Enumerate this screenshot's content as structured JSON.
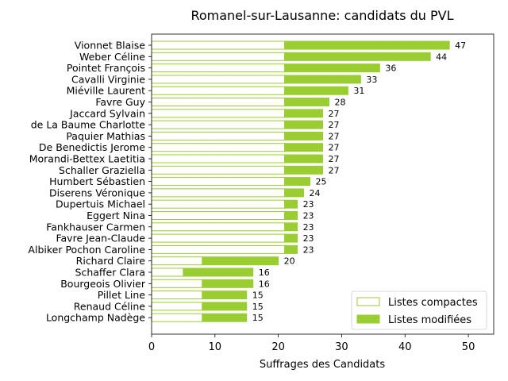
{
  "chart_data": {
    "type": "bar",
    "orientation": "horizontal",
    "stacked": true,
    "title": "Romanel-sur-Lausanne: candidats du PVL",
    "xlabel": "Suffrages des Candidats",
    "ylabel": "",
    "xlim": [
      0,
      54
    ],
    "xticks": [
      0,
      10,
      20,
      30,
      40,
      50
    ],
    "grid": false,
    "legend_position": "bottom-right",
    "colors": {
      "accent": "#9acd32",
      "edge": "#9acd32",
      "background": "#ffffff"
    },
    "categories": [
      "Vionnet Blaise",
      "Weber Céline",
      "Pointet François",
      "Cavalli Virginie",
      "Miéville Laurent",
      "Favre Guy",
      "Jaccard Sylvain",
      "de La Baume Charlotte",
      "Paquier Mathias",
      "De Benedictis Jerome",
      "Morandi-Bettex Laetitia",
      "Schaller Graziella",
      "Humbert Sébastien",
      "Diserens Véronique",
      "Dupertuis Michael",
      "Eggert Nina",
      "Fankhauser Carmen",
      "Favre Jean-Claude",
      "Albiker Pochon Caroline",
      "Richard Claire",
      "Schaffer Clara",
      "Bourgeois Olivier",
      "Pillet Line",
      "Renaud Céline",
      "Longchamp Nadège"
    ],
    "series": [
      {
        "name": "Listes compactes",
        "style": "outline",
        "values": [
          21,
          21,
          21,
          21,
          21,
          21,
          21,
          21,
          21,
          21,
          21,
          21,
          21,
          21,
          21,
          21,
          21,
          21,
          21,
          8,
          5,
          8,
          8,
          8,
          8
        ]
      },
      {
        "name": "Listes modifiées",
        "style": "filled",
        "values": [
          26,
          23,
          15,
          12,
          10,
          7,
          6,
          6,
          6,
          6,
          6,
          6,
          4,
          3,
          2,
          2,
          2,
          2,
          2,
          12,
          11,
          8,
          7,
          7,
          7
        ]
      }
    ],
    "totals": [
      47,
      44,
      36,
      33,
      31,
      28,
      27,
      27,
      27,
      27,
      27,
      27,
      25,
      24,
      23,
      23,
      23,
      23,
      23,
      20,
      16,
      16,
      15,
      15,
      15
    ]
  }
}
